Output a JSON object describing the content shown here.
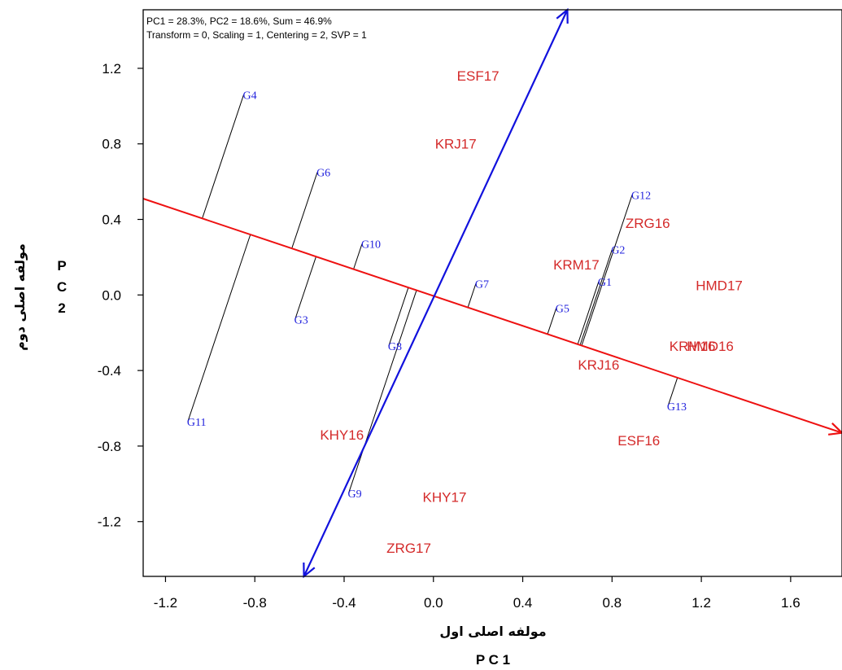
{
  "info": {
    "line1": "PC1 = 28.3%, PC2 = 18.6%, Sum = 46.9%",
    "line2": "Transform = 0, Scaling = 1, Centering = 2, SVP = 1"
  },
  "axes": {
    "x_title_fa": "مولفه اصلی اول",
    "x_title_pc": "P C 1",
    "y_title_fa": "مولفه اصلی دوم",
    "y_title_pc": [
      "P",
      "C",
      "2"
    ]
  },
  "chart_data": {
    "type": "scatter",
    "subtype": "GGE biplot",
    "xlim": [
      -1.3,
      1.83
    ],
    "ylim": [
      -1.49,
      1.51
    ],
    "x_ticks": [
      -1.2,
      -0.8,
      -0.4,
      0.0,
      0.4,
      0.8,
      1.2,
      1.6
    ],
    "x_tick_labels": [
      "-1.2",
      "-0.8",
      "-0.4",
      "0.0",
      "0.4",
      "0.8",
      "1.2",
      "1.6"
    ],
    "y_ticks": [
      1.2,
      0.8,
      0.4,
      0.0,
      -0.4,
      -0.8,
      -1.2
    ],
    "y_tick_labels": [
      "1.2",
      "0.8",
      "0.4",
      "0.0",
      "-0.4",
      "-0.8",
      "-1.2"
    ],
    "environments": [
      {
        "name": "ESF17",
        "x": 0.2,
        "y": 1.16
      },
      {
        "name": "KRJ17",
        "x": 0.1,
        "y": 0.8
      },
      {
        "name": "ZRG16",
        "x": 0.96,
        "y": 0.38
      },
      {
        "name": "KRM17",
        "x": 0.64,
        "y": 0.16
      },
      {
        "name": "HMD17",
        "x": 1.28,
        "y": 0.05
      },
      {
        "name": "KRM16",
        "x": 1.16,
        "y": -0.27
      },
      {
        "name": "HMD16",
        "x": 1.24,
        "y": -0.27
      },
      {
        "name": "KRJ16",
        "x": 0.74,
        "y": -0.37
      },
      {
        "name": "ESF16",
        "x": 0.92,
        "y": -0.77
      },
      {
        "name": "KHY16",
        "x": -0.41,
        "y": -0.74
      },
      {
        "name": "KHY17",
        "x": 0.05,
        "y": -1.07
      },
      {
        "name": "ZRG17",
        "x": -0.11,
        "y": -1.34
      }
    ],
    "genotypes": [
      {
        "name": "G4",
        "x": -0.85,
        "y": 1.06
      },
      {
        "name": "G6",
        "x": -0.52,
        "y": 0.65
      },
      {
        "name": "G12",
        "x": 0.89,
        "y": 0.53
      },
      {
        "name": "G10",
        "x": -0.32,
        "y": 0.27
      },
      {
        "name": "G2",
        "x": 0.8,
        "y": 0.24
      },
      {
        "name": "G7",
        "x": 0.19,
        "y": 0.06
      },
      {
        "name": "G1",
        "x": 0.74,
        "y": 0.07
      },
      {
        "name": "G5",
        "x": 0.55,
        "y": -0.07
      },
      {
        "name": "G3",
        "x": -0.62,
        "y": -0.13
      },
      {
        "name": "G8",
        "x": -0.2,
        "y": -0.27
      },
      {
        "name": "G13",
        "x": 1.05,
        "y": -0.59
      },
      {
        "name": "G11",
        "x": -1.1,
        "y": -0.67
      },
      {
        "name": "G9",
        "x": -0.38,
        "y": -1.05
      }
    ],
    "average_environment_axis": {
      "from": [
        -1.3,
        0.51
      ],
      "to": [
        1.83,
        -0.73
      ]
    },
    "ordinate_axis": {
      "from": [
        -0.58,
        -1.49
      ],
      "to": [
        0.6,
        1.51
      ]
    },
    "colors": {
      "environment": "#d42a2a",
      "genotype": "#2222dd",
      "aea_line": "#ee1111",
      "ordinate_line": "#1111dd",
      "projection": "#000000"
    }
  }
}
